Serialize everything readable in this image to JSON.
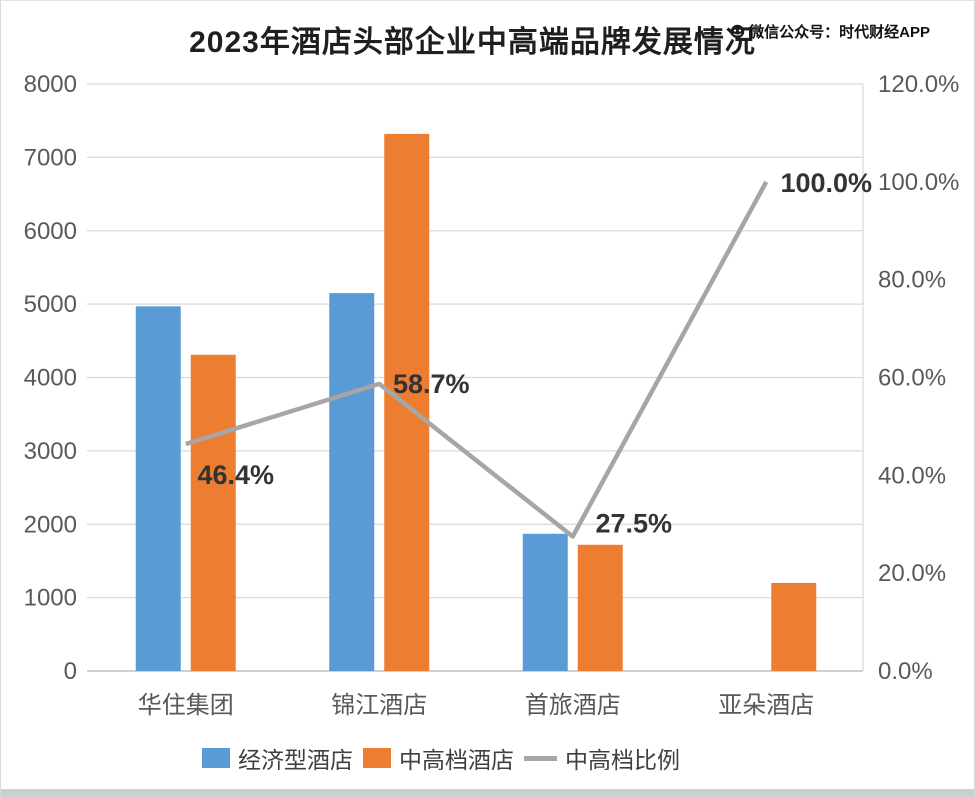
{
  "title": "2023年酒店头部企业中高端品牌发展情况",
  "watermark": {
    "icon": "wechat-icon",
    "text": "微信公众号：时代财经APP"
  },
  "colors": {
    "economy_bar": "#5B9BD5",
    "midscale_bar": "#ED7D31",
    "ratio_line": "#A6A6A6",
    "gridline": "#D9D9D9",
    "axis_line": "#C0C0C0",
    "axis_text": "#595959",
    "data_label_text": "#333333"
  },
  "chart_data": {
    "type": "bar",
    "subtype": "grouped-bar-with-line",
    "title": "2023年酒店头部企业中高端品牌发展情况",
    "categories": [
      "华住集团",
      "锦江酒店",
      "首旅酒店",
      "亚朵酒店"
    ],
    "series": [
      {
        "key": "economy",
        "name": "经济型酒店",
        "type": "bar",
        "axis": "left",
        "color": "#5B9BD5",
        "values": [
          4970,
          5150,
          1870,
          0
        ]
      },
      {
        "key": "midscale",
        "name": "中高档酒店",
        "type": "bar",
        "axis": "left",
        "color": "#ED7D31",
        "values": [
          4310,
          7320,
          1720,
          1200
        ]
      },
      {
        "key": "ratio",
        "name": "中高档比例",
        "type": "line",
        "axis": "right",
        "color": "#A6A6A6",
        "values": [
          46.4,
          58.7,
          27.5,
          100.0
        ],
        "labels": [
          "46.4%",
          "58.7%",
          "27.5%",
          "100.0%"
        ]
      }
    ],
    "left_axis": {
      "min": 0,
      "max": 8000,
      "step": 1000,
      "ticks": [
        "0",
        "1000",
        "2000",
        "3000",
        "4000",
        "5000",
        "6000",
        "7000",
        "8000"
      ]
    },
    "right_axis": {
      "min": 0,
      "max": 120,
      "step": 20,
      "ticks": [
        "0.0%",
        "20.0%",
        "40.0%",
        "60.0%",
        "80.0%",
        "100.0%",
        "120.0%"
      ]
    },
    "grid": true,
    "legend_position": "bottom"
  }
}
